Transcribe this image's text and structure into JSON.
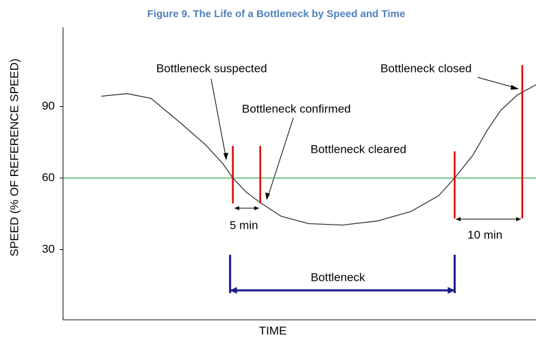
{
  "chart_data": {
    "type": "line",
    "title": "Figure 9. The Life of a Bottleneck by Speed and Time",
    "x_label": "TIME",
    "y_label": "SPEED (% OF REFERENCE SPEED)",
    "xlim": [
      0,
      100
    ],
    "ylim": [
      0,
      123
    ],
    "yticks": [
      30,
      60,
      90
    ],
    "threshold": 60,
    "threshold_color": "#2eaa4a",
    "series": [
      {
        "color": "#333333",
        "x": [
          8.1,
          13.5,
          18.6,
          24.3,
          30.1,
          33.8,
          35.9,
          38.8,
          41.7,
          46.1,
          51.9,
          59.1,
          66.4,
          73.6,
          79.4,
          82.8,
          86.7,
          89.6,
          92.5,
          96.1,
          100
        ],
        "values": [
          94.3,
          95.4,
          93.4,
          84.0,
          74.0,
          66.0,
          60,
          54.0,
          49.7,
          44.0,
          40.9,
          40.3,
          42.0,
          46.0,
          52.6,
          60,
          69.7,
          79.7,
          88.3,
          94.9,
          99.1
        ]
      }
    ],
    "events": [
      35.9,
      41.7,
      82.8,
      97.1
    ],
    "event_color": "#e00000",
    "bracket_color": "#1a1a8c",
    "annotations": [
      "Bottleneck suspected",
      "Bottleneck confirmed",
      "Bottleneck cleared",
      "Bottleneck closed",
      "5 min",
      "10 min",
      "Bottleneck"
    ]
  }
}
